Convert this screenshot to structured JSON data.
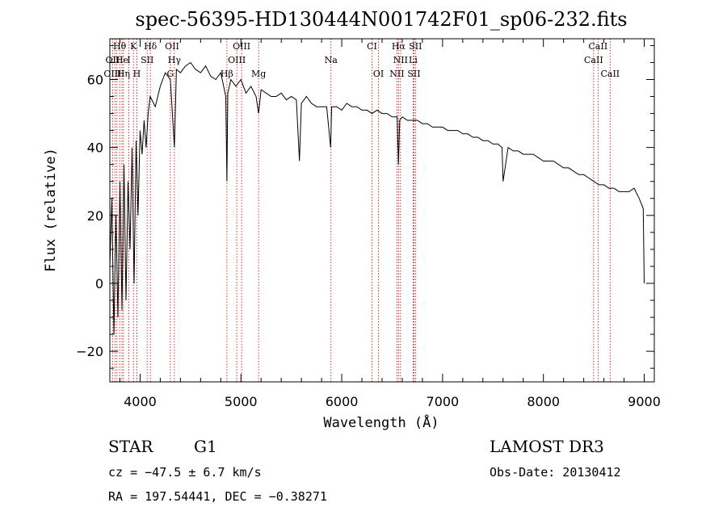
{
  "chart_data": {
    "type": "line",
    "title": "spec-56395-HD130444N001742F01_sp06-232.fits",
    "xlabel": "Wavelength (Å)",
    "ylabel": "Flux (relative)",
    "xlim": [
      3700,
      9100
    ],
    "ylim": [
      -29,
      72
    ],
    "xticks": [
      4000,
      5000,
      6000,
      7000,
      8000,
      9000
    ],
    "yticks": [
      -20,
      0,
      20,
      40,
      60
    ],
    "grid": false,
    "series": [
      {
        "x": [
          3700,
          3720,
          3740,
          3760,
          3780,
          3800,
          3820,
          3840,
          3860,
          3880,
          3900,
          3920,
          3940,
          3960,
          3980,
          4000,
          4020,
          4040,
          4060,
          4080,
          4100,
          4150,
          4200,
          4250,
          4300,
          4340,
          4360,
          4400,
          4450,
          4500,
          4550,
          4600,
          4650,
          4700,
          4750,
          4800,
          4850,
          4861,
          4870,
          4900,
          4950,
          5000,
          5050,
          5100,
          5150,
          5175,
          5200,
          5250,
          5300,
          5350,
          5400,
          5450,
          5500,
          5550,
          5580,
          5600,
          5650,
          5700,
          5750,
          5800,
          5850,
          5890,
          5900,
          5950,
          6000,
          6050,
          6100,
          6150,
          6200,
          6250,
          6300,
          6350,
          6400,
          6450,
          6500,
          6550,
          6563,
          6575,
          6600,
          6650,
          6700,
          6750,
          6800,
          6850,
          6900,
          6950,
          7000,
          7050,
          7100,
          7150,
          7200,
          7250,
          7300,
          7350,
          7400,
          7450,
          7500,
          7550,
          7590,
          7600,
          7650,
          7700,
          7750,
          7800,
          7850,
          7900,
          7950,
          8000,
          8050,
          8100,
          8150,
          8200,
          8250,
          8300,
          8350,
          8400,
          8450,
          8500,
          8550,
          8600,
          8650,
          8700,
          8750,
          8800,
          8850,
          8900,
          8950,
          8990,
          9000
        ],
        "y": [
          5,
          25,
          -15,
          20,
          -10,
          30,
          -8,
          35,
          -5,
          30,
          10,
          40,
          0,
          42,
          20,
          45,
          38,
          48,
          40,
          50,
          55,
          52,
          58,
          62,
          60,
          40,
          63,
          62,
          64,
          65,
          63,
          62,
          64,
          61,
          60,
          62,
          55,
          30,
          56,
          60,
          58,
          60,
          56,
          58,
          55,
          50,
          57,
          56,
          55,
          55,
          56,
          54,
          55,
          54,
          36,
          53,
          55,
          53,
          52,
          52,
          52,
          40,
          52,
          52,
          51,
          53,
          52,
          52,
          51,
          51,
          50,
          51,
          50,
          50,
          49,
          49,
          35,
          48,
          49,
          48,
          48,
          48,
          47,
          47,
          46,
          46,
          46,
          45,
          45,
          45,
          44,
          44,
          43,
          43,
          42,
          42,
          41,
          41,
          40,
          30,
          40,
          39,
          39,
          38,
          38,
          38,
          37,
          36,
          36,
          36,
          35,
          34,
          34,
          33,
          32,
          32,
          31,
          30,
          29,
          29,
          28,
          28,
          27,
          27,
          27,
          28,
          25,
          22,
          0
        ]
      }
    ],
    "line_labels": [
      {
        "text": "Hθ",
        "wl": 3797,
        "row": 1
      },
      {
        "text": "K",
        "wl": 3934,
        "row": 1
      },
      {
        "text": "Hδ",
        "wl": 4102,
        "row": 1
      },
      {
        "text": "OII",
        "wl": 4317,
        "row": 1
      },
      {
        "text": "OIII",
        "wl": 5007,
        "row": 1
      },
      {
        "text": "CI",
        "wl": 6300,
        "row": 1
      },
      {
        "text": "Hα",
        "wl": 6563,
        "row": 1
      },
      {
        "text": "SII",
        "wl": 6731,
        "row": 1
      },
      {
        "text": "CaII",
        "wl": 8542,
        "row": 1
      },
      {
        "text": "OII",
        "wl": 3727,
        "row": 2
      },
      {
        "text": "He",
        "wl": 3820,
        "row": 2
      },
      {
        "text": "I",
        "wl": 3889,
        "row": 2
      },
      {
        "text": "SII",
        "wl": 4070,
        "row": 2
      },
      {
        "text": "Hγ",
        "wl": 4340,
        "row": 2
      },
      {
        "text": "OIII",
        "wl": 4959,
        "row": 2
      },
      {
        "text": "Na",
        "wl": 5893,
        "row": 2
      },
      {
        "text": "NII",
        "wl": 6583,
        "row": 2
      },
      {
        "text": "Li",
        "wl": 6708,
        "row": 2
      },
      {
        "text": "CaII",
        "wl": 8498,
        "row": 2
      },
      {
        "text": "OIII",
        "wl": 3727,
        "row": 3
      },
      {
        "text": "Hη",
        "wl": 3835,
        "row": 3
      },
      {
        "text": "H",
        "wl": 3968,
        "row": 3
      },
      {
        "text": "G",
        "wl": 4300,
        "row": 3
      },
      {
        "text": "Hβ",
        "wl": 4861,
        "row": 3
      },
      {
        "text": "Mg",
        "wl": 5175,
        "row": 3
      },
      {
        "text": "OI",
        "wl": 6364,
        "row": 3
      },
      {
        "text": "NII",
        "wl": 6548,
        "row": 3
      },
      {
        "text": "SII",
        "wl": 6716,
        "row": 3
      },
      {
        "text": "CaII",
        "wl": 8662,
        "row": 3
      }
    ],
    "line_markers": [
      3727,
      3750,
      3770,
      3797,
      3820,
      3835,
      3889,
      3934,
      3968,
      4070,
      4102,
      4300,
      4340,
      4861,
      4959,
      5007,
      5175,
      5893,
      6300,
      6364,
      6548,
      6563,
      6583,
      6708,
      6716,
      6731,
      8498,
      8542,
      8662
    ]
  },
  "info": {
    "object_class": "STAR",
    "subclass": "G1",
    "survey": "LAMOST DR3",
    "cz": "cz = −47.5 ± 6.7 km/s",
    "obs_date": "Obs-Date: 20130412",
    "coords": "RA = 197.54441, DEC =  −0.38271"
  },
  "colors": {
    "marker": "#cc0000",
    "spectrum": "#000000"
  }
}
